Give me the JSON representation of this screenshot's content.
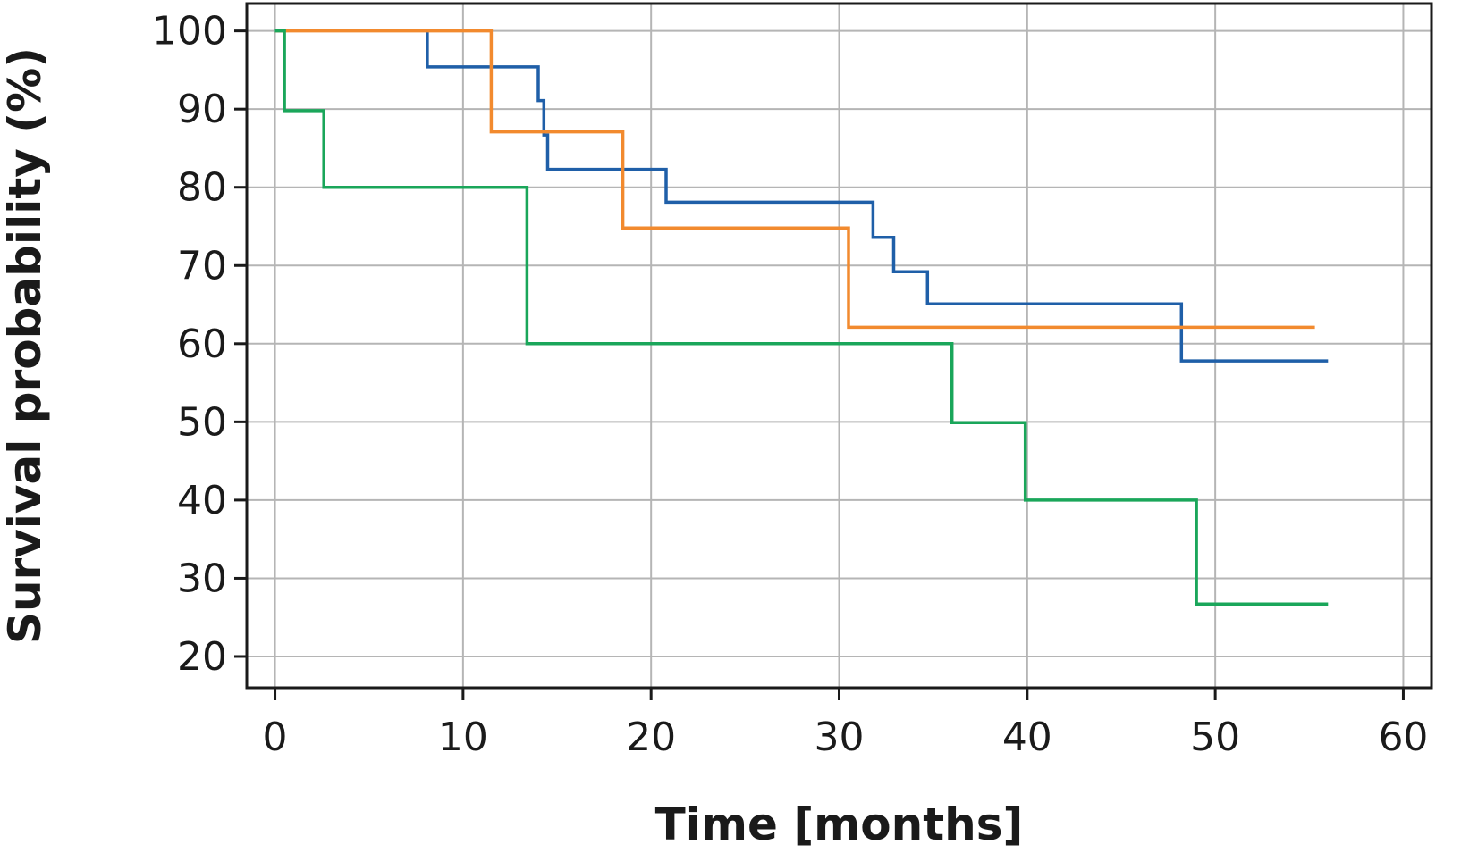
{
  "chart_data": {
    "type": "line",
    "step": true,
    "title": "",
    "xlabel": "Time [months]",
    "ylabel": "Survival probability (%)",
    "xlim": [
      -1.5,
      61.5
    ],
    "ylim": [
      16,
      103.5
    ],
    "xticks": [
      0,
      10,
      20,
      30,
      40,
      50,
      60
    ],
    "yticks": [
      20,
      30,
      40,
      50,
      60,
      70,
      80,
      90,
      100
    ],
    "grid": true,
    "legend": "none",
    "series": [
      {
        "color": "#1f5fa8",
        "points": [
          [
            8.1,
            100
          ],
          [
            8.1,
            95.4
          ],
          [
            14.0,
            95.4
          ],
          [
            14.0,
            91.1
          ],
          [
            14.3,
            91.1
          ],
          [
            14.3,
            86.7
          ],
          [
            14.5,
            86.7
          ],
          [
            14.5,
            82.3
          ],
          [
            20.8,
            82.3
          ],
          [
            20.8,
            78.1
          ],
          [
            31.8,
            78.1
          ],
          [
            31.8,
            73.6
          ],
          [
            32.9,
            73.6
          ],
          [
            32.9,
            69.2
          ],
          [
            34.7,
            69.2
          ],
          [
            34.7,
            65.1
          ],
          [
            48.2,
            65.1
          ],
          [
            48.2,
            57.8
          ],
          [
            56.0,
            57.8
          ]
        ]
      },
      {
        "color": "#f28a2e",
        "points": [
          [
            0.0,
            100
          ],
          [
            11.5,
            100
          ],
          [
            11.5,
            87.1
          ],
          [
            18.5,
            87.1
          ],
          [
            18.5,
            74.8
          ],
          [
            30.5,
            74.8
          ],
          [
            30.5,
            62.1
          ],
          [
            55.3,
            62.1
          ]
        ]
      },
      {
        "color": "#1aa65a",
        "points": [
          [
            0.0,
            100
          ],
          [
            0.5,
            100
          ],
          [
            0.5,
            89.8
          ],
          [
            2.6,
            89.8
          ],
          [
            2.6,
            80.0
          ],
          [
            13.4,
            80.0
          ],
          [
            13.4,
            60.0
          ],
          [
            36.0,
            60.0
          ],
          [
            36.0,
            49.9
          ],
          [
            39.9,
            49.9
          ],
          [
            39.9,
            40.0
          ],
          [
            49.0,
            40.0
          ],
          [
            49.0,
            26.7
          ],
          [
            56.0,
            26.7
          ]
        ]
      }
    ]
  }
}
